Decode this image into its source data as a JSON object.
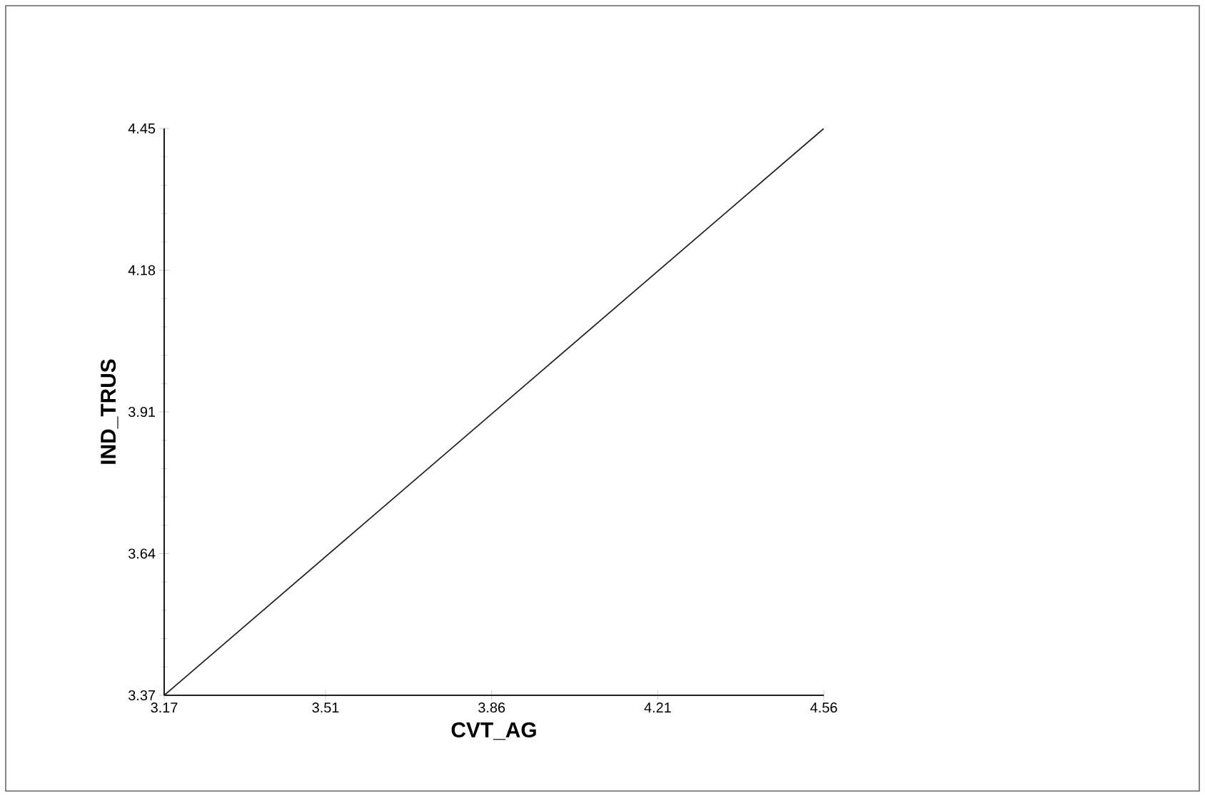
{
  "chart_data": {
    "type": "line",
    "xlabel": "CVT_AG",
    "ylabel": "IND_TRUS",
    "x": [
      3.17,
      4.56
    ],
    "series": [
      {
        "color": "#222222",
        "values": [
          3.37,
          4.45
        ]
      }
    ],
    "xlim": [
      3.17,
      4.56
    ],
    "ylim": [
      3.37,
      4.45
    ],
    "xticks": [
      3.17,
      3.51,
      3.86,
      4.21,
      4.56
    ],
    "yticks": [
      3.37,
      3.64,
      3.91,
      4.18,
      4.45
    ],
    "marker": "none",
    "line_style": "solid",
    "grid": false
  }
}
